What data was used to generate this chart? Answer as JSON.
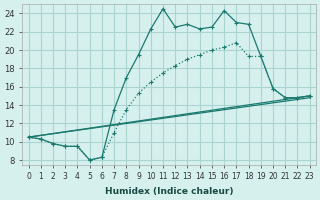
{
  "xlabel": "Humidex (Indice chaleur)",
  "ylabel": "",
  "background_color": "#d6f0ee",
  "grid_color": "#aad4cf",
  "line_color": "#1a7a6e",
  "xlim": [
    -0.5,
    23.5
  ],
  "ylim": [
    7.5,
    25
  ],
  "xtick_labels": [
    "0",
    "1",
    "2",
    "3",
    "4",
    "5",
    "6",
    "7",
    "8",
    "9",
    "10",
    "11",
    "12",
    "13",
    "14",
    "15",
    "16",
    "17",
    "18",
    "19",
    "20",
    "21",
    "22",
    "23"
  ],
  "ytick_values": [
    8,
    10,
    12,
    14,
    16,
    18,
    20,
    22,
    24
  ],
  "line1_x": [
    0,
    1,
    2,
    3,
    4,
    5,
    6,
    7,
    8,
    9,
    10,
    11,
    12,
    13,
    14,
    15,
    16,
    17,
    18,
    19,
    20,
    21,
    22,
    23
  ],
  "line1_y": [
    10.5,
    10.3,
    9.8,
    9.5,
    9.5,
    8.0,
    8.3,
    13.5,
    17.0,
    19.5,
    22.3,
    24.5,
    22.5,
    22.8,
    22.3,
    22.5,
    24.3,
    23.0,
    22.8,
    19.3,
    15.8,
    14.8,
    14.8,
    15.0
  ],
  "line2_x": [
    0,
    1,
    2,
    3,
    4,
    5,
    6,
    7,
    8,
    9,
    10,
    11,
    12,
    13,
    14,
    15,
    16,
    17,
    18,
    19,
    20,
    21,
    22,
    23
  ],
  "line2_y": [
    10.5,
    10.3,
    9.8,
    9.5,
    9.5,
    8.0,
    8.3,
    11.0,
    13.5,
    15.3,
    16.5,
    17.5,
    18.3,
    19.0,
    19.5,
    20.0,
    20.3,
    20.8,
    19.3,
    19.3,
    15.8,
    14.8,
    14.8,
    15.0
  ],
  "line3_x": [
    0,
    23
  ],
  "line3_y": [
    10.5,
    15.0
  ],
  "line4_x": [
    0,
    23
  ],
  "line4_y": [
    10.5,
    14.8
  ]
}
